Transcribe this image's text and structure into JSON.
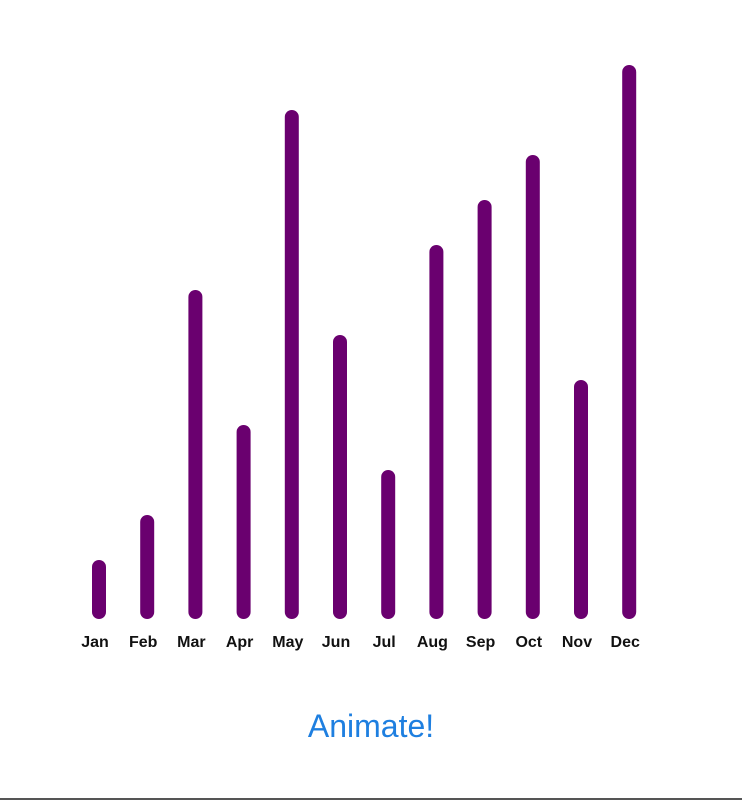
{
  "chart_data": {
    "type": "bar",
    "categories": [
      "Jan",
      "Feb",
      "Mar",
      "Apr",
      "May",
      "Jun",
      "Jul",
      "Aug",
      "Sep",
      "Oct",
      "Nov",
      "Dec"
    ],
    "values": [
      1,
      2,
      7,
      4,
      11,
      6,
      3,
      8,
      9,
      10,
      5,
      12
    ],
    "title": "",
    "xlabel": "",
    "ylabel": "",
    "ylim": [
      0,
      12
    ],
    "grid": false,
    "legend": "none",
    "bar_color": "#6a006f"
  },
  "controls": {
    "animate_label": "Animate!",
    "accent_color": "#1e7fe0"
  }
}
